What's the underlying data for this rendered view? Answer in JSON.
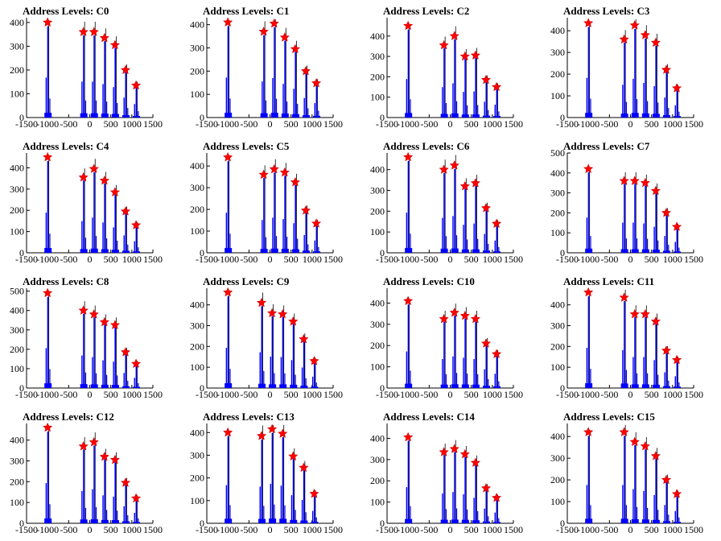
{
  "x_ticks": [
    -1500,
    -1000,
    -500,
    0,
    500,
    1000,
    1500
  ],
  "chart_data": [
    {
      "type": "line",
      "title": "Address Levels: C0",
      "xlim": [
        -1500,
        1500
      ],
      "ylim": [
        0,
        420
      ],
      "yticks": [
        0,
        100,
        200,
        300,
        400
      ],
      "peaks_x": [
        -1000,
        -150,
        100,
        350,
        600,
        850,
        1100
      ],
      "peaks_y": [
        400,
        360,
        360,
        335,
        305,
        200,
        135
      ]
    },
    {
      "type": "line",
      "title": "Address Levels: C1",
      "xlim": [
        -1500,
        1500
      ],
      "ylim": [
        0,
        430
      ],
      "yticks": [
        0,
        100,
        200,
        300,
        400
      ],
      "peaks_x": [
        -1000,
        -150,
        100,
        350,
        600,
        850,
        1100
      ],
      "peaks_y": [
        410,
        370,
        405,
        345,
        295,
        200,
        148
      ]
    },
    {
      "type": "line",
      "title": "Address Levels: C2",
      "xlim": [
        -1500,
        1500
      ],
      "ylim": [
        0,
        490
      ],
      "yticks": [
        0,
        100,
        200,
        300,
        400
      ],
      "peaks_x": [
        -1000,
        -150,
        100,
        350,
        600,
        850,
        1100
      ],
      "peaks_y": [
        450,
        355,
        400,
        300,
        305,
        185,
        150
      ]
    },
    {
      "type": "line",
      "title": "Address Levels: C3",
      "xlim": [
        -1500,
        1500
      ],
      "ylim": [
        0,
        460
      ],
      "yticks": [
        0,
        100,
        200,
        300,
        400
      ],
      "peaks_x": [
        -1000,
        -150,
        100,
        350,
        600,
        850,
        1100
      ],
      "peaks_y": [
        435,
        360,
        425,
        380,
        345,
        220,
        135
      ]
    },
    {
      "type": "line",
      "title": "Address Levels: C4",
      "xlim": [
        -1500,
        1500
      ],
      "ylim": [
        0,
        470
      ],
      "yticks": [
        0,
        100,
        200,
        300,
        400
      ],
      "peaks_x": [
        -1000,
        -150,
        100,
        350,
        600,
        850,
        1100
      ],
      "peaks_y": [
        450,
        355,
        395,
        340,
        285,
        195,
        130
      ]
    },
    {
      "type": "line",
      "title": "Address Levels: C5",
      "xlim": [
        -1500,
        1500
      ],
      "ylim": [
        0,
        460
      ],
      "yticks": [
        0,
        100,
        200,
        300,
        400
      ],
      "peaks_x": [
        -1000,
        -150,
        100,
        350,
        600,
        850,
        1100
      ],
      "peaks_y": [
        440,
        360,
        385,
        370,
        325,
        195,
        135
      ]
    },
    {
      "type": "line",
      "title": "Address Levels: C6",
      "xlim": [
        -1500,
        1500
      ],
      "ylim": [
        0,
        480
      ],
      "yticks": [
        0,
        100,
        200,
        300,
        400
      ],
      "peaks_x": [
        -1000,
        -150,
        100,
        350,
        600,
        850,
        1100
      ],
      "peaks_y": [
        460,
        400,
        420,
        320,
        335,
        215,
        140
      ]
    },
    {
      "type": "line",
      "title": "Address Levels: C7",
      "xlim": [
        -1500,
        1500
      ],
      "ylim": [
        0,
        500
      ],
      "yticks": [
        0,
        100,
        200,
        300,
        400,
        500
      ],
      "peaks_x": [
        -1000,
        -150,
        100,
        350,
        600,
        850,
        1100
      ],
      "peaks_y": [
        420,
        360,
        360,
        350,
        310,
        200,
        130
      ]
    },
    {
      "type": "line",
      "title": "Address Levels: C8",
      "xlim": [
        -1500,
        1500
      ],
      "ylim": [
        0,
        515
      ],
      "yticks": [
        0,
        100,
        200,
        300,
        400,
        500
      ],
      "peaks_x": [
        -1000,
        -150,
        100,
        350,
        600,
        850,
        1100
      ],
      "peaks_y": [
        490,
        400,
        380,
        340,
        325,
        185,
        125
      ]
    },
    {
      "type": "line",
      "title": "Address Levels: C9",
      "xlim": [
        -1500,
        1500
      ],
      "ylim": [
        0,
        480
      ],
      "yticks": [
        0,
        100,
        200,
        300,
        400
      ],
      "peaks_x": [
        -1000,
        -200,
        50,
        300,
        550,
        800,
        1050
      ],
      "peaks_y": [
        460,
        410,
        360,
        355,
        320,
        235,
        130
      ]
    },
    {
      "type": "line",
      "title": "Address Levels: C10",
      "xlim": [
        -1500,
        1500
      ],
      "ylim": [
        0,
        470
      ],
      "yticks": [
        0,
        100,
        200,
        300,
        400
      ],
      "peaks_x": [
        -1000,
        -150,
        100,
        350,
        600,
        850,
        1100
      ],
      "peaks_y": [
        410,
        325,
        355,
        340,
        325,
        210,
        160
      ]
    },
    {
      "type": "line",
      "title": "Address Levels: C11",
      "xlim": [
        -1500,
        1500
      ],
      "ylim": [
        0,
        480
      ],
      "yticks": [
        0,
        100,
        200,
        300,
        400
      ],
      "peaks_x": [
        -1000,
        -150,
        100,
        350,
        600,
        850,
        1100
      ],
      "peaks_y": [
        460,
        435,
        355,
        355,
        320,
        180,
        135
      ]
    },
    {
      "type": "line",
      "title": "Address Levels: C12",
      "xlim": [
        -1500,
        1500
      ],
      "ylim": [
        0,
        480
      ],
      "yticks": [
        0,
        100,
        200,
        300,
        400
      ],
      "peaks_x": [
        -1000,
        -150,
        100,
        350,
        600,
        850,
        1100
      ],
      "peaks_y": [
        460,
        370,
        390,
        320,
        305,
        195,
        120
      ]
    },
    {
      "type": "line",
      "title": "Address Levels: C13",
      "xlim": [
        -1500,
        1500
      ],
      "ylim": [
        0,
        440
      ],
      "yticks": [
        0,
        100,
        200,
        300,
        400
      ],
      "peaks_x": [
        -1000,
        -200,
        50,
        300,
        550,
        800,
        1050
      ],
      "peaks_y": [
        400,
        385,
        415,
        395,
        295,
        245,
        130
      ]
    },
    {
      "type": "line",
      "title": "Address Levels: C14",
      "xlim": [
        -1500,
        1500
      ],
      "ylim": [
        0,
        470
      ],
      "yticks": [
        0,
        100,
        200,
        300,
        400
      ],
      "peaks_x": [
        -1000,
        -150,
        100,
        350,
        600,
        850,
        1100
      ],
      "peaks_y": [
        405,
        335,
        350,
        325,
        285,
        165,
        120
      ]
    },
    {
      "type": "line",
      "title": "Address Levels: C15",
      "xlim": [
        -1500,
        1500
      ],
      "ylim": [
        0,
        460
      ],
      "yticks": [
        0,
        100,
        200,
        300,
        400
      ],
      "peaks_x": [
        -1000,
        -150,
        100,
        350,
        600,
        850,
        1100
      ],
      "peaks_y": [
        420,
        420,
        375,
        355,
        310,
        200,
        135
      ]
    }
  ],
  "colors": {
    "histogram": "#0000ff",
    "spike": "#000000",
    "marker": "#ff0000",
    "marker_outline": "#cc0000",
    "axis": "#000000"
  },
  "marker_icon": "red-star-marker"
}
